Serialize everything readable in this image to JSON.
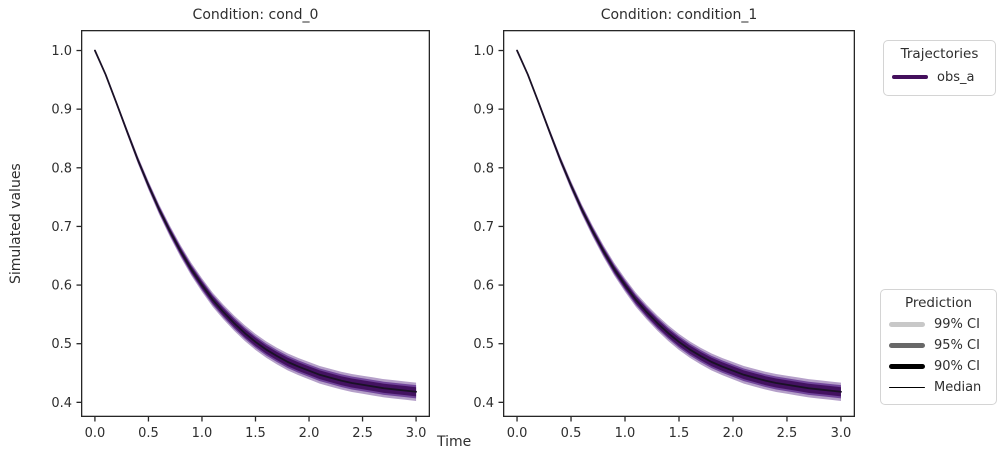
{
  "chart_data": {
    "type": "line",
    "xlabel": "Time",
    "ylabel": "Simulated values",
    "subplots": [
      {
        "title": "Condition: cond_0"
      },
      {
        "title": "Condition: condition_1"
      }
    ],
    "series_name": "obs_a",
    "x": [
      0,
      0.1,
      0.2,
      0.3,
      0.4,
      0.5,
      0.6,
      0.7,
      0.8,
      0.9,
      1.0,
      1.1,
      1.2,
      1.3,
      1.4,
      1.5,
      1.6,
      1.7,
      1.8,
      1.9,
      2.0,
      2.1,
      2.2,
      2.3,
      2.4,
      2.5,
      2.6,
      2.7,
      2.8,
      2.9,
      3.0
    ],
    "median": [
      1.0,
      0.959,
      0.911,
      0.862,
      0.814,
      0.77,
      0.729,
      0.692,
      0.658,
      0.627,
      0.6,
      0.575,
      0.554,
      0.535,
      0.518,
      0.503,
      0.49,
      0.479,
      0.469,
      0.461,
      0.454,
      0.447,
      0.442,
      0.437,
      0.433,
      0.43,
      0.427,
      0.424,
      0.422,
      0.42,
      0.418
    ],
    "ci99_half": [
      0,
      0.002,
      0.0037,
      0.0052,
      0.0065,
      0.0076,
      0.0087,
      0.0096,
      0.0103,
      0.011,
      0.0116,
      0.0122,
      0.0126,
      0.013,
      0.0134,
      0.0137,
      0.014,
      0.0142,
      0.0145,
      0.0146,
      0.0148,
      0.015,
      0.0151,
      0.0152,
      0.0153,
      0.0154,
      0.0155,
      0.0155,
      0.0156,
      0.0156,
      0.0157
    ],
    "ci95_half": [
      0,
      0.0014,
      0.0026,
      0.0037,
      0.0047,
      0.0055,
      0.0062,
      0.0069,
      0.0074,
      0.0079,
      0.0084,
      0.0087,
      0.0091,
      0.0094,
      0.0096,
      0.0099,
      0.0101,
      0.0102,
      0.0104,
      0.0105,
      0.0106,
      0.0108,
      0.0108,
      0.0109,
      0.011,
      0.0111,
      0.0111,
      0.0112,
      0.0112,
      0.0112,
      0.0113
    ],
    "ci90_half": [
      0,
      0.001,
      0.0018,
      0.0026,
      0.0032,
      0.0038,
      0.0043,
      0.0048,
      0.0052,
      0.0055,
      0.0058,
      0.0061,
      0.0063,
      0.0065,
      0.0067,
      0.0069,
      0.007,
      0.0071,
      0.0072,
      0.0073,
      0.0074,
      0.0075,
      0.0075,
      0.0076,
      0.0076,
      0.0077,
      0.0077,
      0.0078,
      0.0078,
      0.0078,
      0.0078
    ],
    "xticks": [
      0,
      0.5,
      1,
      1.5,
      2,
      2.5,
      3
    ],
    "xtick_labels": [
      "0.0",
      "0.5",
      "1.0",
      "1.5",
      "2.0",
      "2.5",
      "3.0"
    ],
    "yticks": [
      0.4,
      0.5,
      0.6,
      0.7,
      0.8,
      0.9,
      1.0
    ],
    "ytick_labels": [
      "0.4",
      "0.5",
      "0.6",
      "0.7",
      "0.8",
      "0.9",
      "1.0"
    ],
    "xlim": [
      -0.13,
      3.13
    ],
    "ylim": [
      0.375,
      1.035
    ],
    "grid": false,
    "legend_position": "right",
    "colors": {
      "band_99": "#b5a0c9",
      "band_95": "#71459a",
      "band_90": "#431261",
      "median_line": "#1a1126",
      "spine": "#262626",
      "text": "#2e2e2e"
    }
  },
  "legends": {
    "trajectories": {
      "title": "Trajectories",
      "entries": [
        {
          "label": "obs_a",
          "color": "#440f5c",
          "thickness": 4.5
        }
      ]
    },
    "prediction": {
      "title": "Prediction",
      "entries": [
        {
          "label": "99% CI",
          "color": "#c8c8c8",
          "thickness": 4.5
        },
        {
          "label": "95% CI",
          "color": "#686868",
          "thickness": 4.5
        },
        {
          "label": "90% CI",
          "color": "#000000",
          "thickness": 4.5
        },
        {
          "label": "Median",
          "color": "#000000",
          "thickness": 1.5
        }
      ]
    }
  }
}
